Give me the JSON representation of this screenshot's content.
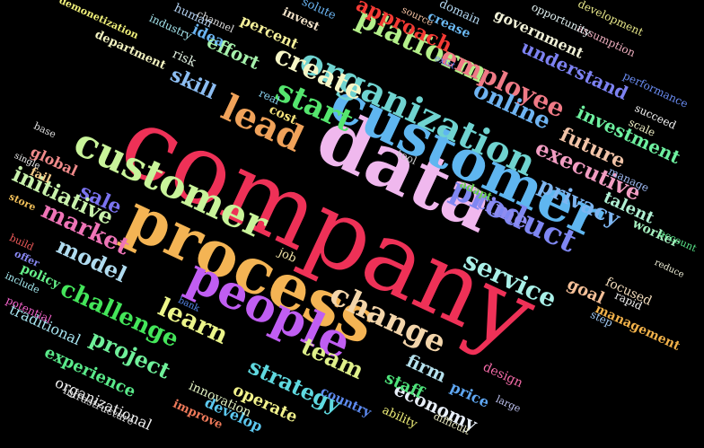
{
  "words": [
    {
      "text": "company",
      "color": "#ee3157"
    },
    {
      "text": "data",
      "color": "#f0b8ee"
    },
    {
      "text": "customer",
      "color": "#5fb6f0"
    },
    {
      "text": "process",
      "color": "#f4b454"
    },
    {
      "text": "people",
      "color": "#c05ef2"
    },
    {
      "text": "customer",
      "color": "#c9f49a"
    },
    {
      "text": "lead",
      "color": "#f0a25a"
    },
    {
      "text": "organization",
      "color": "#6fd3d0"
    },
    {
      "text": "start",
      "color": "#55e66e"
    },
    {
      "text": "platform",
      "color": "#b4f08a"
    },
    {
      "text": "create",
      "color": "#f6f6c6"
    },
    {
      "text": "employee",
      "color": "#f07a86"
    },
    {
      "text": "change",
      "color": "#f3d5aa"
    },
    {
      "text": "product",
      "color": "#7f87f2"
    },
    {
      "text": "service",
      "color": "#a9f0e8"
    },
    {
      "text": "time",
      "color": "#8d8cf2"
    },
    {
      "text": "online",
      "color": "#6fb4f2"
    },
    {
      "text": "privacy",
      "color": "#7eb6f2"
    },
    {
      "text": "future",
      "color": "#f2c4a8"
    },
    {
      "text": "executive",
      "color": "#f29dc2"
    },
    {
      "text": "team",
      "color": "#dff08a"
    },
    {
      "text": "strategy",
      "color": "#5fd9e0"
    },
    {
      "text": "learn",
      "color": "#ecf58a"
    },
    {
      "text": "challenge",
      "color": "#44e65a"
    },
    {
      "text": "project",
      "color": "#6ff09a"
    },
    {
      "text": "model",
      "color": "#b0dcf0"
    },
    {
      "text": "market",
      "color": "#ef74b7"
    },
    {
      "text": "sale",
      "color": "#7b73f0"
    },
    {
      "text": "initiative",
      "color": "#c9f2ac"
    },
    {
      "text": "understand",
      "color": "#7d82f2"
    },
    {
      "text": "approach",
      "color": "#f43a34"
    },
    {
      "text": "government",
      "color": "#f2f2d8"
    },
    {
      "text": "investment",
      "color": "#6ef0a0"
    },
    {
      "text": "skill",
      "color": "#8cbdf2"
    },
    {
      "text": "effort",
      "color": "#a6f2ac"
    },
    {
      "text": "percent",
      "color": "#f5f09a"
    },
    {
      "text": "idea",
      "color": "#6ab4f2"
    },
    {
      "text": "economy",
      "color": "#e9f0fa"
    },
    {
      "text": "firm",
      "color": "#b6e2ee"
    },
    {
      "text": "price",
      "color": "#5ea6f2"
    },
    {
      "text": "staff",
      "color": "#4ee27a"
    },
    {
      "text": "country",
      "color": "#5e8cf2"
    },
    {
      "text": "operate",
      "color": "#f2f28c"
    },
    {
      "text": "design",
      "color": "#f56ba8"
    },
    {
      "text": "goal",
      "color": "#f5c098"
    },
    {
      "text": "talent",
      "color": "#b0f0d4"
    },
    {
      "text": "focused",
      "color": "#f2dcbc"
    },
    {
      "text": "management",
      "color": "#f2b24a"
    },
    {
      "text": "experience",
      "color": "#5aea8a"
    },
    {
      "text": "organizational",
      "color": "#f2f2f2"
    },
    {
      "text": "develop",
      "color": "#5cc8f0"
    },
    {
      "text": "innovation",
      "color": "#e1f0c0"
    },
    {
      "text": "traditional",
      "color": "#a8e6f2"
    },
    {
      "text": "policy",
      "color": "#66f28a"
    },
    {
      "text": "job",
      "color": "#f2e4a8"
    },
    {
      "text": "tool",
      "color": "#c8c8c8"
    },
    {
      "text": "adapt",
      "color": "#6ad052"
    },
    {
      "text": "cost",
      "color": "#f5e27a"
    },
    {
      "text": "real",
      "color": "#8bd4f2"
    },
    {
      "text": "global",
      "color": "#f08a8a"
    },
    {
      "text": "fail",
      "color": "#f5cc8a"
    },
    {
      "text": "single",
      "color": "#f2f2f2"
    },
    {
      "text": "base",
      "color": "#e0e0e0"
    },
    {
      "text": "store",
      "color": "#f2c05a"
    },
    {
      "text": "build",
      "color": "#f05a5a"
    },
    {
      "text": "offer",
      "color": "#8888f2"
    },
    {
      "text": "include",
      "color": "#a6ecf2"
    },
    {
      "text": "potential",
      "color": "#f060c8"
    },
    {
      "text": "bank",
      "color": "#5a8cf2"
    },
    {
      "text": "improve",
      "color": "#f07a5a"
    },
    {
      "text": "infrastructure",
      "color": "#dcdcdc"
    },
    {
      "text": "ability",
      "color": "#f2f27a"
    },
    {
      "text": "difficult",
      "color": "#f2f2c8"
    },
    {
      "text": "large",
      "color": "#c0c4f2"
    },
    {
      "text": "step",
      "color": "#a0c8f2"
    },
    {
      "text": "rapid",
      "color": "#f2f2f2"
    },
    {
      "text": "reduce",
      "color": "#f0f0d8"
    },
    {
      "text": "worker",
      "color": "#a6f0c0"
    },
    {
      "text": "account",
      "color": "#5ae68a"
    },
    {
      "text": "manage",
      "color": "#9db9f2"
    },
    {
      "text": "succeed",
      "color": "#f2f2f2"
    },
    {
      "text": "scale",
      "color": "#f2f2c8"
    },
    {
      "text": "performance",
      "color": "#6a8cf2"
    },
    {
      "text": "assumption",
      "color": "#f0b0c0"
    },
    {
      "text": "development",
      "color": "#e8e88a"
    },
    {
      "text": "opportunity",
      "color": "#e0f0f0"
    },
    {
      "text": "domain",
      "color": "#b4d8f2"
    },
    {
      "text": "source",
      "color": "#f2c0a0"
    },
    {
      "text": "crease",
      "color": "#6ab8f2"
    },
    {
      "text": "exist",
      "color": "#6a7cf2"
    },
    {
      "text": "solute",
      "color": "#6ab4f2"
    },
    {
      "text": "invest",
      "color": "#f2e2c8"
    },
    {
      "text": "channel",
      "color": "#e2e2e2"
    },
    {
      "text": "human",
      "color": "#b4d2f2"
    },
    {
      "text": "industry",
      "color": "#a4e4ec"
    },
    {
      "text": "demonetization",
      "color": "#f0f07a"
    },
    {
      "text": "department",
      "color": "#f2f2c0"
    },
    {
      "text": "risk",
      "color": "#e2f2e2"
    }
  ]
}
